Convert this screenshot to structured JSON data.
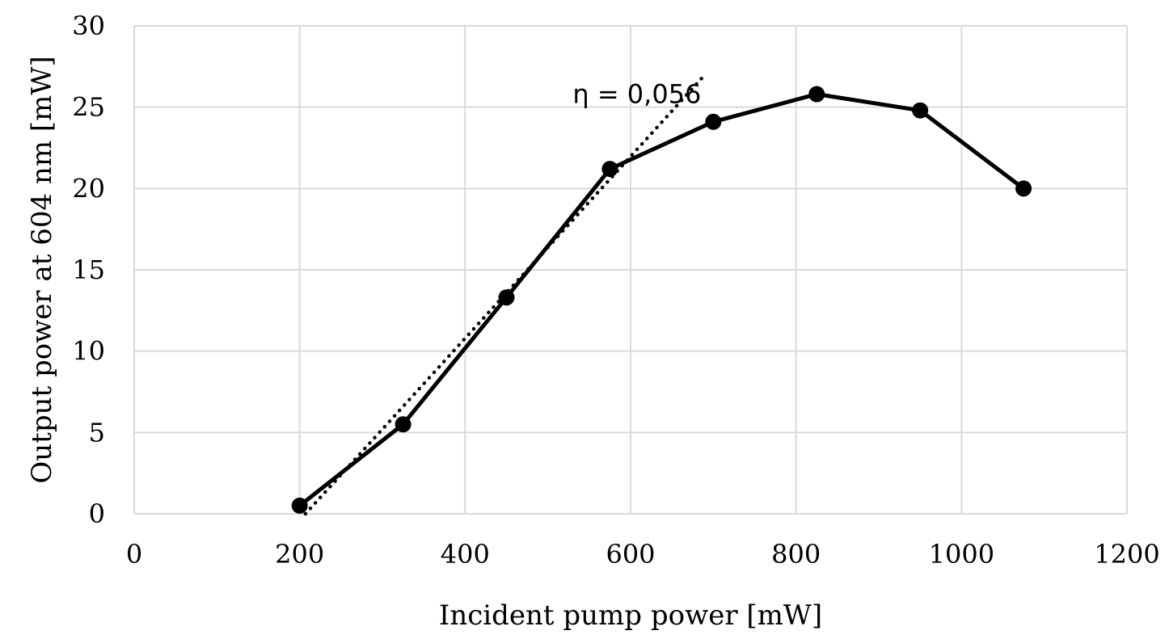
{
  "chart_data": {
    "type": "line",
    "xlabel": "Incident pump power [mW]",
    "ylabel": "Output power at 604 nm [mW]",
    "xlim": [
      0,
      1200
    ],
    "ylim": [
      0,
      30
    ],
    "x_ticks": [
      0,
      200,
      400,
      600,
      800,
      1000,
      1200
    ],
    "y_ticks": [
      0,
      5,
      10,
      15,
      20,
      25,
      30
    ],
    "grid": true,
    "series": [
      {
        "x": [
          200,
          325,
          450,
          575,
          700,
          825,
          950,
          1075
        ],
        "y": [
          0.5,
          5.5,
          13.3,
          21.2,
          24.1,
          25.8,
          24.8,
          20.0
        ],
        "style": "solid",
        "markers": true,
        "color": "#000000"
      }
    ],
    "fit_line": {
      "x": [
        207,
        690
      ],
      "y": [
        0,
        27
      ],
      "style": "dotted",
      "color": "#000000"
    },
    "annotations": [
      {
        "text": "η = 0,056",
        "x": 530,
        "y": 25.8
      }
    ]
  }
}
